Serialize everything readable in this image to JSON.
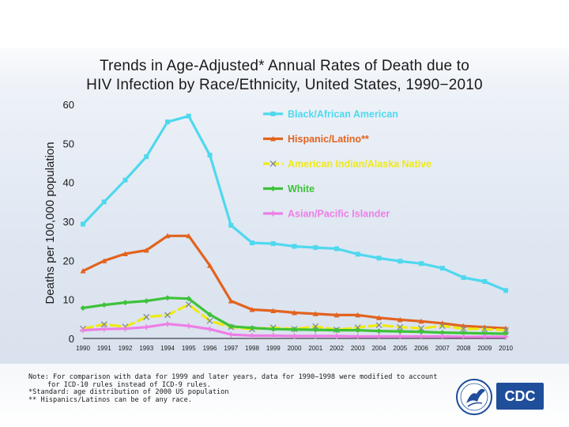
{
  "title_line1": "Trends in Age-Adjusted* Annual Rates of Death due to",
  "title_line2": "HIV Infection by Race/Ethnicity, United States, 1990−2010",
  "notes": [
    "Note: For comparison with data for 1999 and later years, data for 1990−1998 were modified to account",
    "for ICD-10 rules instead of ICD-9 rules.",
    "*Standard: age distribution of 2000 US population",
    "** Hispanics/Latinos can be of any race."
  ],
  "logo_text": "CDC",
  "colors": {
    "black": "#4fd8ee",
    "hispanic": "#e2631f",
    "aian": "#f0ea10",
    "white": "#3ec23a",
    "asian": "#ee7ee6",
    "axis": "#1a1a1a",
    "logo_blue": "#1f4e9a"
  },
  "chart_data": {
    "type": "line",
    "title": "Trends in Age-Adjusted* Annual Rates of Death due to HIV Infection by Race/Ethnicity, United States, 1990−2010",
    "xlabel": "",
    "ylabel": "Deaths per 100,000 population",
    "ylim": [
      0,
      60
    ],
    "yticks": [
      0,
      10,
      20,
      30,
      40,
      50,
      60
    ],
    "x": [
      "1990",
      "1991",
      "1992",
      "1993",
      "1994",
      "1995",
      "1996",
      "1997",
      "1998",
      "1999",
      "2000",
      "2001",
      "2002",
      "2003",
      "2004",
      "2005",
      "2006",
      "2007",
      "2008",
      "2009",
      "2010"
    ],
    "legend_position": "top-right",
    "series": [
      {
        "name": "Black/African American",
        "color_key": "black",
        "marker": "square",
        "values": [
          29.3,
          35.0,
          40.6,
          46.6,
          55.5,
          57.0,
          47.0,
          29.0,
          24.5,
          24.3,
          23.6,
          23.3,
          23.0,
          21.6,
          20.6,
          19.8,
          19.2,
          18.0,
          15.6,
          14.6,
          12.3
        ]
      },
      {
        "name": "Hispanic/Latino**",
        "color_key": "hispanic",
        "marker": "triangle",
        "values": [
          17.3,
          19.9,
          21.7,
          22.6,
          26.3,
          26.3,
          18.7,
          9.6,
          7.4,
          7.1,
          6.6,
          6.3,
          6.0,
          6.0,
          5.3,
          4.8,
          4.4,
          3.9,
          3.2,
          2.9,
          2.6
        ]
      },
      {
        "name": "American Indian/Alaska Native",
        "color_key": "aian",
        "marker": "x",
        "dashed": true,
        "values": [
          2.5,
          3.6,
          3.0,
          5.5,
          6.0,
          8.7,
          4.5,
          2.9,
          2.4,
          2.8,
          2.4,
          3.1,
          2.2,
          2.8,
          3.4,
          2.9,
          2.6,
          3.2,
          2.5,
          2.4,
          2.1
        ]
      },
      {
        "name": "White",
        "color_key": "white",
        "marker": "diamond",
        "values": [
          7.8,
          8.6,
          9.2,
          9.6,
          10.4,
          10.2,
          6.1,
          3.1,
          2.7,
          2.4,
          2.3,
          2.2,
          2.1,
          2.1,
          1.9,
          1.8,
          1.7,
          1.5,
          1.4,
          1.3,
          1.2
        ]
      },
      {
        "name": "Asian/Pacific Islander",
        "color_key": "asian",
        "marker": "star",
        "values": [
          2.1,
          2.4,
          2.5,
          2.9,
          3.7,
          3.2,
          2.4,
          1.0,
          0.7,
          0.7,
          0.6,
          0.6,
          0.6,
          0.5,
          0.5,
          0.5,
          0.5,
          0.5,
          0.4,
          0.4,
          0.4
        ]
      }
    ]
  }
}
